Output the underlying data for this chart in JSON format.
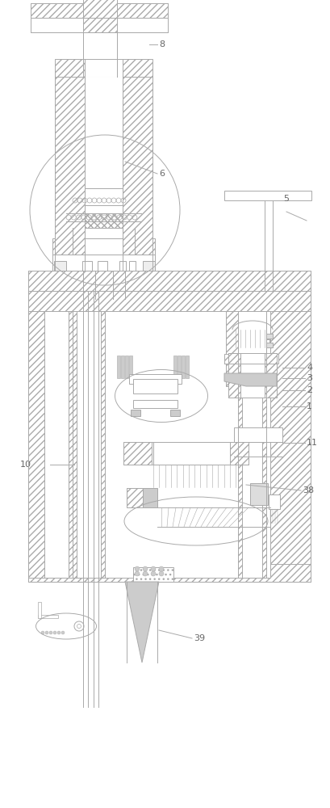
{
  "bg_color": "#ffffff",
  "lc": "#aaaaaa",
  "hc": "#aaaaaa",
  "label_color": "#666666",
  "lw": 0.7
}
